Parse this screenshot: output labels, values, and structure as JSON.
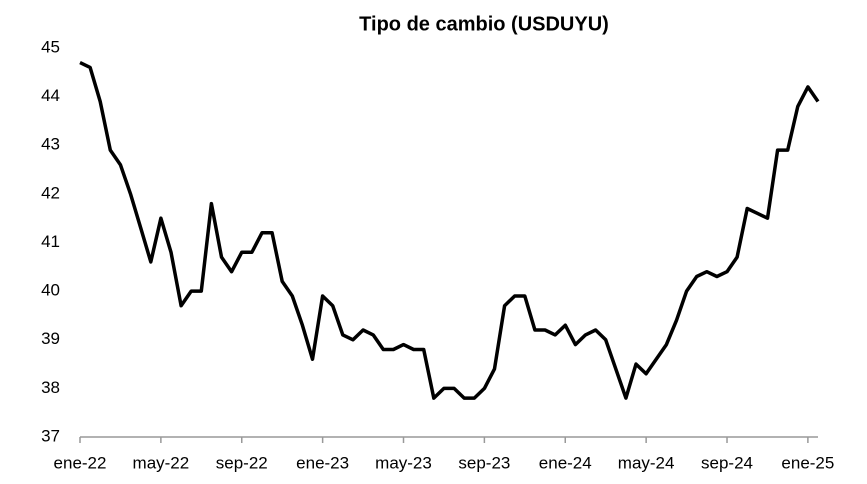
{
  "chart_data": {
    "type": "line",
    "title": "Tipo de cambio (USDUYU)",
    "categories": [
      "ene-22",
      null,
      null,
      null,
      null,
      null,
      null,
      null,
      "may-22",
      null,
      null,
      null,
      null,
      null,
      null,
      null,
      "sep-22",
      null,
      null,
      null,
      null,
      null,
      null,
      null,
      "ene-23",
      null,
      null,
      null,
      null,
      null,
      null,
      null,
      "may-23",
      null,
      null,
      null,
      null,
      null,
      null,
      null,
      "sep-23",
      null,
      null,
      null,
      null,
      null,
      null,
      null,
      "ene-24",
      null,
      null,
      null,
      null,
      null,
      null,
      null,
      "may-24",
      null,
      null,
      null,
      null,
      null,
      null,
      null,
      "sep-24",
      null,
      null,
      null,
      null,
      null,
      null,
      null,
      "ene-25",
      null
    ],
    "series": [
      {
        "name": "USDUYU",
        "color": "#000000",
        "values": [
          44.7,
          44.6,
          43.9,
          42.9,
          42.6,
          42.0,
          41.3,
          40.6,
          41.5,
          40.8,
          39.7,
          40.0,
          40.0,
          41.8,
          40.7,
          40.4,
          40.8,
          40.8,
          41.2,
          41.2,
          40.2,
          39.9,
          39.3,
          38.6,
          39.9,
          39.7,
          39.1,
          39.0,
          39.2,
          39.1,
          38.8,
          38.8,
          38.9,
          38.8,
          38.8,
          37.8,
          38.0,
          38.0,
          37.8,
          37.8,
          38.0,
          38.4,
          39.7,
          39.9,
          39.9,
          39.2,
          39.2,
          39.1,
          39.3,
          38.9,
          39.1,
          39.2,
          39.0,
          38.4,
          37.8,
          38.5,
          38.3,
          38.6,
          38.9,
          39.4,
          40.0,
          40.3,
          40.4,
          40.3,
          40.4,
          40.7,
          41.7,
          41.6,
          41.5,
          42.9,
          42.9,
          43.8,
          44.2,
          43.9
        ]
      }
    ],
    "ylim": [
      37,
      45
    ],
    "yticks": [
      37,
      38,
      39,
      40,
      41,
      42,
      43,
      44,
      45
    ],
    "grid": false
  }
}
